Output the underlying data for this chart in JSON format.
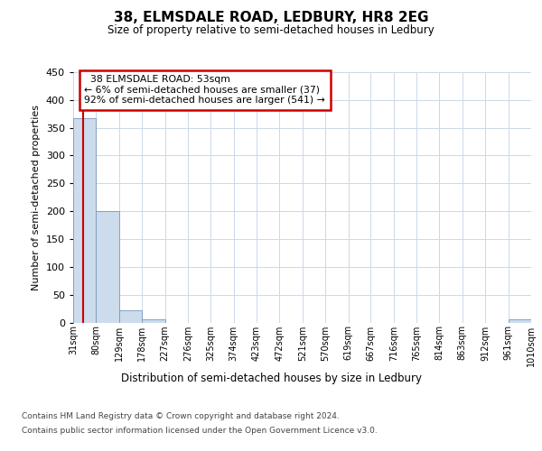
{
  "title": "38, ELMSDALE ROAD, LEDBURY, HR8 2EG",
  "subtitle": "Size of property relative to semi-detached houses in Ledbury",
  "xlabel": "Distribution of semi-detached houses by size in Ledbury",
  "ylabel": "Number of semi-detached properties",
  "bin_edges": [
    31,
    80,
    129,
    178,
    227,
    276,
    325,
    374,
    423,
    472,
    521,
    570,
    619,
    667,
    716,
    765,
    814,
    863,
    912,
    961,
    1010
  ],
  "bar_heights": [
    367,
    200,
    22,
    6,
    0,
    0,
    0,
    0,
    0,
    0,
    0,
    0,
    0,
    0,
    0,
    0,
    0,
    0,
    0,
    5
  ],
  "bar_color": "#ccdcec",
  "bar_edgecolor": "#7799bb",
  "property_size": 53,
  "property_label": "38 ELMSDALE ROAD: 53sqm",
  "pct_smaller": 6,
  "num_smaller": 37,
  "pct_larger": 92,
  "num_larger": 541,
  "annotation_box_color": "#cc0000",
  "vline_color": "#cc0000",
  "ylim": [
    0,
    450
  ],
  "yticks": [
    0,
    50,
    100,
    150,
    200,
    250,
    300,
    350,
    400,
    450
  ],
  "footer_line1": "Contains HM Land Registry data © Crown copyright and database right 2024.",
  "footer_line2": "Contains public sector information licensed under the Open Government Licence v3.0.",
  "background_color": "#ffffff",
  "grid_color": "#ccd8e8"
}
